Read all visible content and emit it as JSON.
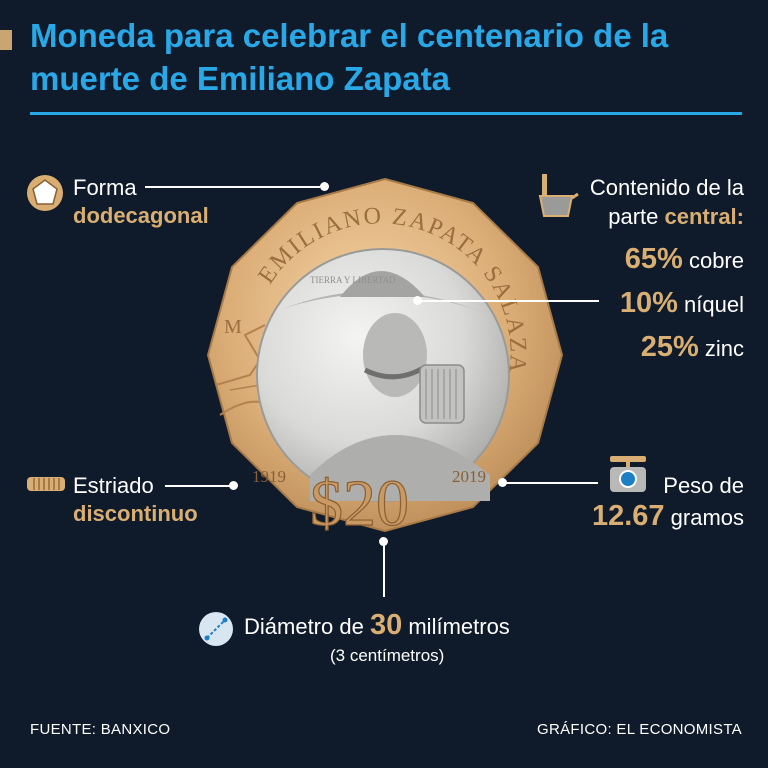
{
  "title": "Moneda para celebrar el centenario de la muerte de Emiliano Zapata",
  "shape": {
    "label": "Forma",
    "value": "dodecagonal"
  },
  "edge": {
    "label": "Estriado",
    "value": "discontinuo"
  },
  "content": {
    "label_prefix": "Contenido de la",
    "label_mid": "parte",
    "label_bold": "central:",
    "items": [
      {
        "pct": "65%",
        "metal": "cobre"
      },
      {
        "pct": "10%",
        "metal": "níquel"
      },
      {
        "pct": "25%",
        "metal": "zinc"
      }
    ]
  },
  "weight": {
    "label": "Peso de",
    "value": "12.67",
    "unit": "gramos"
  },
  "diameter": {
    "label": "Diámetro de",
    "value": "30",
    "unit": "milímetros",
    "note": "(3 centímetros)"
  },
  "coin": {
    "name": "EMILIANO ZAPATA SALAZAR",
    "motto": "TIERRA Y LIBERTAD",
    "mint_mark": "M",
    "year_left": "1919",
    "year_right": "2019",
    "denomination": "$20"
  },
  "footer": {
    "source": "FUENTE: BANXICO",
    "credit": "GRÁFICO: EL ECONOMISTA"
  },
  "colors": {
    "background": "#0f1a2a",
    "accent_blue": "#29a8e8",
    "accent_gold": "#d9ae72"
  }
}
